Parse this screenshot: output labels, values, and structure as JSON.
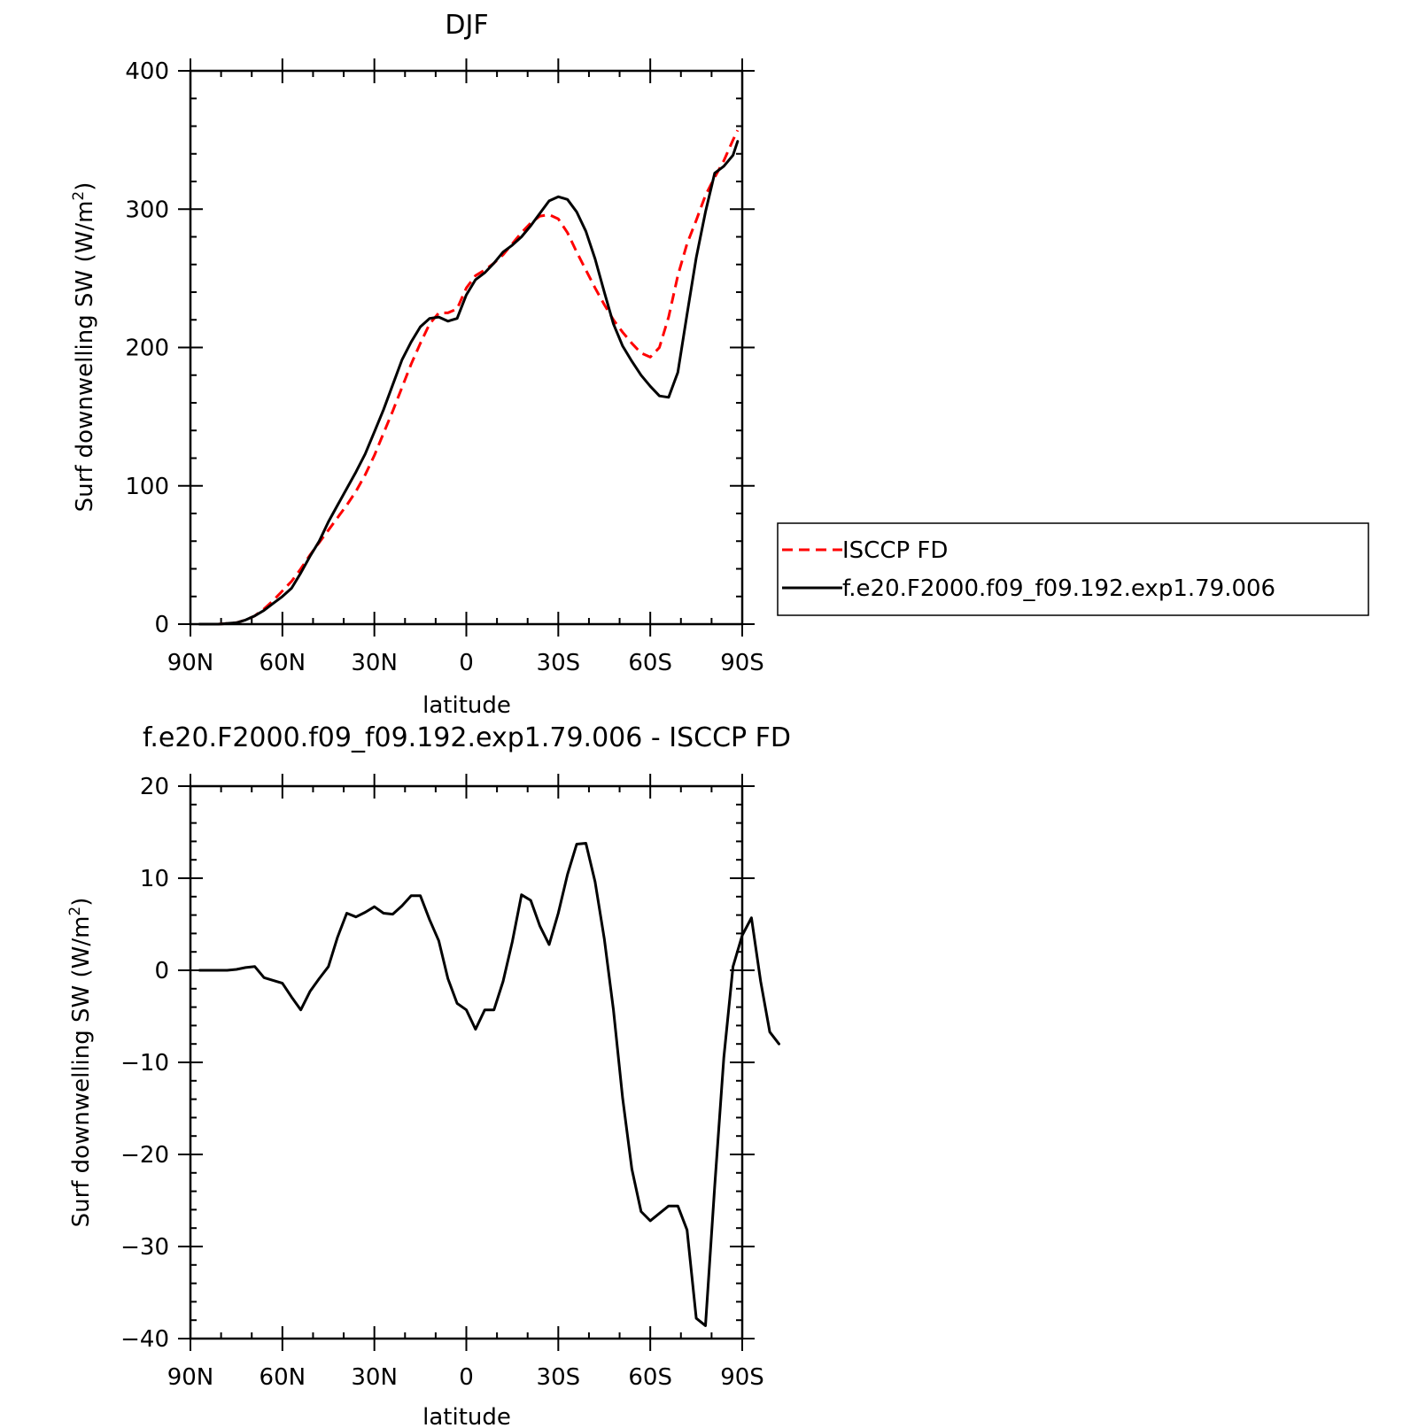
{
  "chart_data": [
    {
      "type": "line",
      "title": "DJF",
      "xlabel": "latitude",
      "ylabel": "Surf downwelling SW (W/m²)",
      "ylabel_main": "Surf downwelling SW (W/m",
      "ylabel_sup": "2",
      "ylabel_close": ")",
      "xlim": [
        -90,
        90
      ],
      "ylim": [
        0,
        400
      ],
      "x_ticks": [
        -90,
        -60,
        -30,
        0,
        30,
        60,
        90
      ],
      "x_tick_labels": [
        "90N",
        "60N",
        "30N",
        "0",
        "30S",
        "60S",
        "90S"
      ],
      "y_ticks": [
        0,
        100,
        200,
        300,
        400
      ],
      "y_tick_labels": [
        "0",
        "100",
        "200",
        "300",
        "400"
      ],
      "grid": false,
      "legend_position": "right",
      "series": [
        {
          "name": "ISCCP FD",
          "color": "#ff0000",
          "dash": "dashed",
          "points": [
            [
              -87,
              0
            ],
            [
              -81,
              0
            ],
            [
              -75,
              1
            ],
            [
              -72,
              3
            ],
            [
              -69,
              6
            ],
            [
              -66,
              11
            ],
            [
              -63,
              17
            ],
            [
              -60,
              24
            ],
            [
              -57,
              31
            ],
            [
              -54,
              40
            ],
            [
              -51,
              50
            ],
            [
              -48,
              59
            ],
            [
              -45,
              68
            ],
            [
              -42,
              77
            ],
            [
              -39,
              86
            ],
            [
              -36,
              96
            ],
            [
              -33,
              108
            ],
            [
              -30,
              122
            ],
            [
              -27,
              138
            ],
            [
              -24,
              154
            ],
            [
              -21,
              171
            ],
            [
              -18,
              188
            ],
            [
              -15,
              203
            ],
            [
              -12,
              217
            ],
            [
              -9,
              225
            ],
            [
              -6,
              225
            ],
            [
              -3,
              228
            ],
            [
              0,
              243
            ],
            [
              3,
              252
            ],
            [
              6,
              256
            ],
            [
              9,
              261
            ],
            [
              12,
              267
            ],
            [
              15,
              275
            ],
            [
              18,
              283
            ],
            [
              21,
              290
            ],
            [
              24,
              295
            ],
            [
              27,
              296
            ],
            [
              30,
              293
            ],
            [
              33,
              283
            ],
            [
              36,
              269
            ],
            [
              39,
              256
            ],
            [
              42,
              243
            ],
            [
              45,
              231
            ],
            [
              48,
              220
            ],
            [
              51,
              211
            ],
            [
              54,
              203
            ],
            [
              57,
              196
            ],
            [
              60,
              193
            ],
            [
              63,
              200
            ],
            [
              66,
              222
            ],
            [
              69,
              252
            ],
            [
              72,
              275
            ],
            [
              75,
              292
            ],
            [
              78,
              310
            ],
            [
              81,
              323
            ],
            [
              84,
              335
            ],
            [
              87,
              350
            ],
            [
              88.5,
              357
            ]
          ]
        },
        {
          "name": "f.e20.F2000.f09_f09.192.exp1.79.006",
          "color": "#000000",
          "dash": "solid",
          "points": [
            [
              -87,
              0
            ],
            [
              -81,
              0
            ],
            [
              -75,
              1
            ],
            [
              -72,
              3
            ],
            [
              -69,
              6
            ],
            [
              -66,
              10
            ],
            [
              -63,
              15
            ],
            [
              -60,
              20
            ],
            [
              -57,
              26
            ],
            [
              -54,
              37
            ],
            [
              -51,
              49
            ],
            [
              -48,
              60
            ],
            [
              -45,
              74
            ],
            [
              -42,
              86
            ],
            [
              -39,
              98
            ],
            [
              -36,
              110
            ],
            [
              -33,
              123
            ],
            [
              -30,
              139
            ],
            [
              -27,
              155
            ],
            [
              -24,
              173
            ],
            [
              -21,
              191
            ],
            [
              -18,
              204
            ],
            [
              -15,
              215
            ],
            [
              -12,
              221
            ],
            [
              -9,
              222
            ],
            [
              -6,
              219
            ],
            [
              -3,
              221
            ],
            [
              0,
              238
            ],
            [
              3,
              249
            ],
            [
              6,
              254
            ],
            [
              9,
              261
            ],
            [
              12,
              269
            ],
            [
              15,
              274
            ],
            [
              18,
              280
            ],
            [
              21,
              288
            ],
            [
              24,
              297
            ],
            [
              27,
              306
            ],
            [
              30,
              309
            ],
            [
              33,
              307
            ],
            [
              36,
              298
            ],
            [
              39,
              284
            ],
            [
              42,
              264
            ],
            [
              45,
              240
            ],
            [
              48,
              217
            ],
            [
              51,
              201
            ],
            [
              54,
              190
            ],
            [
              57,
              180
            ],
            [
              60,
              172
            ],
            [
              63,
              165
            ],
            [
              66,
              164
            ],
            [
              69,
              182
            ],
            [
              72,
              224
            ],
            [
              75,
              265
            ],
            [
              78,
              298
            ],
            [
              81,
              326
            ],
            [
              84,
              331
            ],
            [
              87,
              339
            ],
            [
              88.5,
              349
            ]
          ]
        }
      ]
    },
    {
      "type": "line",
      "title": "f.e20.F2000.f09_f09.192.exp1.79.006 - ISCCP FD",
      "xlabel": "latitude",
      "ylabel": "Surf downwelling SW (W/m²)",
      "ylabel_main": "Surf downwelling SW (W/m",
      "ylabel_sup": "2",
      "ylabel_close": ")",
      "xlim": [
        -90,
        90
      ],
      "ylim": [
        -40,
        20
      ],
      "x_ticks": [
        -90,
        -60,
        -30,
        0,
        30,
        60,
        90
      ],
      "x_tick_labels": [
        "90N",
        "60N",
        "30N",
        "0",
        "30S",
        "60S",
        "90S"
      ],
      "y_ticks": [
        -40,
        -30,
        -20,
        -10,
        0,
        10,
        20
      ],
      "y_tick_labels": [
        "−40",
        "−30",
        "−20",
        "−10",
        "0",
        "10",
        "20"
      ],
      "grid": false,
      "series": [
        {
          "name": "",
          "color": "#000000",
          "dash": "solid",
          "points": [
            [
              -87,
              0
            ],
            [
              -84,
              0
            ],
            [
              -81,
              0
            ],
            [
              -78,
              0
            ],
            [
              -75,
              0.1
            ],
            [
              -72,
              0.3
            ],
            [
              -69,
              0.4
            ],
            [
              -66,
              -0.8
            ],
            [
              -63,
              -1.1
            ],
            [
              -60,
              -1.4
            ],
            [
              -57,
              -2.9
            ],
            [
              -54,
              -4.3
            ],
            [
              -51,
              -2.3
            ],
            [
              -48,
              -0.9
            ],
            [
              -45,
              0.4
            ],
            [
              -42,
              3.6
            ],
            [
              -39,
              6.2
            ],
            [
              -36,
              5.8
            ],
            [
              -33,
              6.3
            ],
            [
              -30,
              6.9
            ],
            [
              -27,
              6.2
            ],
            [
              -24,
              6.1
            ],
            [
              -21,
              7.0
            ],
            [
              -18,
              8.1
            ],
            [
              -15,
              8.1
            ],
            [
              -12,
              5.5
            ],
            [
              -9,
              3.2
            ],
            [
              -6,
              -0.9
            ],
            [
              -3,
              -3.6
            ],
            [
              0,
              -4.3
            ],
            [
              3,
              -6.4
            ],
            [
              6,
              -4.3
            ],
            [
              9,
              -4.3
            ],
            [
              12,
              -1.2
            ],
            [
              15,
              3.1
            ],
            [
              18,
              8.2
            ],
            [
              21,
              7.6
            ],
            [
              24,
              4.8
            ],
            [
              27,
              2.8
            ],
            [
              30,
              6.2
            ],
            [
              33,
              10.4
            ],
            [
              36,
              13.7
            ],
            [
              39,
              13.8
            ],
            [
              42,
              9.6
            ],
            [
              45,
              3.4
            ],
            [
              48,
              -4.3
            ],
            [
              51,
              -13.9
            ],
            [
              54,
              -21.6
            ],
            [
              57,
              -26.2
            ],
            [
              60,
              -27.2
            ],
            [
              63,
              -26.4
            ],
            [
              66,
              -25.6
            ],
            [
              69,
              -25.6
            ],
            [
              72,
              -28.2
            ],
            [
              75,
              -37.8
            ],
            [
              78,
              -38.6
            ],
            [
              81,
              -23.5
            ],
            [
              84,
              -9.5
            ],
            [
              87,
              0.4
            ],
            [
              90,
              3.8
            ],
            [
              93,
              5.7
            ],
            [
              96,
              -1.2
            ],
            [
              99,
              -6.7
            ],
            [
              102,
              -8.0
            ]
          ]
        }
      ]
    }
  ]
}
